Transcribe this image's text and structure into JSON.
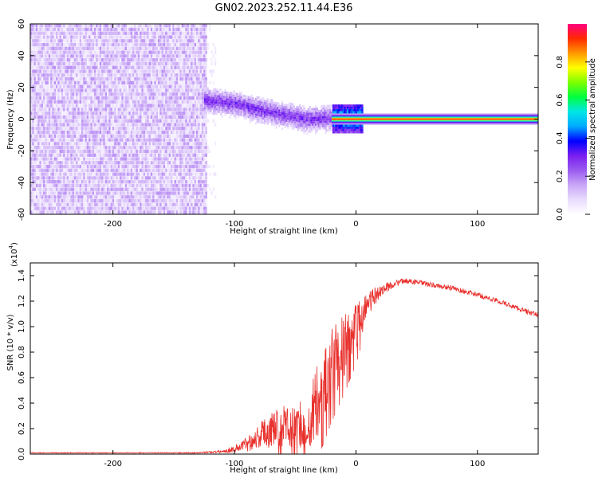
{
  "figure": {
    "title": "GN02.2023.252.11.44.E36"
  },
  "colors": {
    "line": "#e8302c",
    "axis": "#000000",
    "colormap_stops": [
      "#ffffff",
      "#e9dcfd",
      "#c9a7f7",
      "#9a5cf0",
      "#7a1ff0",
      "#0000ff",
      "#00aaff",
      "#00e6e6",
      "#00ff40",
      "#7cff00",
      "#ffff00",
      "#ff9900",
      "#ff2a00",
      "#ff0080"
    ]
  },
  "chart_data": [
    {
      "type": "heatmap",
      "title": "GN02.2023.252.11.44.E36",
      "xlabel": "Height of straight line (km)",
      "ylabel": "Frequency (Hz)",
      "xlim": [
        -268,
        150
      ],
      "ylim": [
        -60,
        60
      ],
      "xticks": [
        -200,
        -100,
        0,
        100
      ],
      "yticks": [
        -60,
        -40,
        -20,
        0,
        20,
        40,
        60
      ],
      "xtick_labels": [
        "-200",
        "-100",
        "0",
        "100"
      ],
      "ytick_labels": [
        "-60",
        "-40",
        "-20",
        "0",
        "20",
        "40",
        "60"
      ],
      "colorbar": {
        "label": "Normalized spectral amplitude",
        "range": [
          0,
          1
        ],
        "ticks": [
          0.0,
          0.2,
          0.4,
          0.6,
          0.8
        ],
        "tick_labels": [
          "0.0",
          "0.2",
          "0.4",
          "0.6",
          "0.8"
        ]
      },
      "regions": [
        {
          "name": "broadband noise",
          "x_range": [
            -268,
            -123
          ],
          "y_range": [
            -60,
            60
          ],
          "amplitude": 0.05
        },
        {
          "name": "descending tone",
          "x": [
            -125,
            -100,
            -80,
            -60,
            -40,
            -20,
            0
          ],
          "y": [
            11,
            9,
            5,
            2,
            -1,
            0,
            0
          ],
          "amplitude": 0.3
        },
        {
          "name": "steady tone",
          "x_range": [
            -20,
            150
          ],
          "y": 0,
          "amplitude": 0.95
        }
      ]
    },
    {
      "type": "line",
      "xlabel": "Height of straight line (km)",
      "ylabel": "SNR (10 * v/v)",
      "multiplier_label": "(x10",
      "multiplier_exp": "4",
      "xlim": [
        -268,
        150
      ],
      "ylim": [
        0.0,
        1.5
      ],
      "xticks": [
        -200,
        -100,
        0,
        100
      ],
      "yticks": [
        0.0,
        0.2,
        0.4,
        0.6,
        0.8,
        1.0,
        1.2,
        1.4
      ],
      "xtick_labels": [
        "-200",
        "-100",
        "0",
        "100"
      ],
      "ytick_labels": [
        "0.0",
        "0.2",
        "0.4",
        "0.6",
        "0.8",
        "1.0",
        "1.2",
        "1.4"
      ],
      "series": [
        {
          "x": [
            -268,
            -240,
            -200,
            -160,
            -130,
            -110,
            -100,
            -90,
            -80,
            -70,
            -60,
            -50,
            -40,
            -30,
            -20,
            -10,
            0,
            10,
            20,
            30,
            40,
            50,
            60,
            80,
            100,
            120,
            140,
            150
          ],
          "y": [
            0.01,
            0.01,
            0.01,
            0.01,
            0.01,
            0.02,
            0.04,
            0.08,
            0.14,
            0.2,
            0.22,
            0.2,
            0.25,
            0.45,
            0.7,
            0.85,
            1.0,
            1.18,
            1.28,
            1.33,
            1.36,
            1.35,
            1.33,
            1.3,
            1.25,
            1.19,
            1.12,
            1.09
          ],
          "noise": [
            0.003,
            0.003,
            0.003,
            0.003,
            0.005,
            0.01,
            0.03,
            0.06,
            0.1,
            0.15,
            0.17,
            0.17,
            0.22,
            0.3,
            0.3,
            0.26,
            0.2,
            0.1,
            0.05,
            0.03,
            0.02,
            0.02,
            0.02,
            0.02,
            0.02,
            0.02,
            0.02,
            0.02
          ]
        }
      ]
    }
  ]
}
